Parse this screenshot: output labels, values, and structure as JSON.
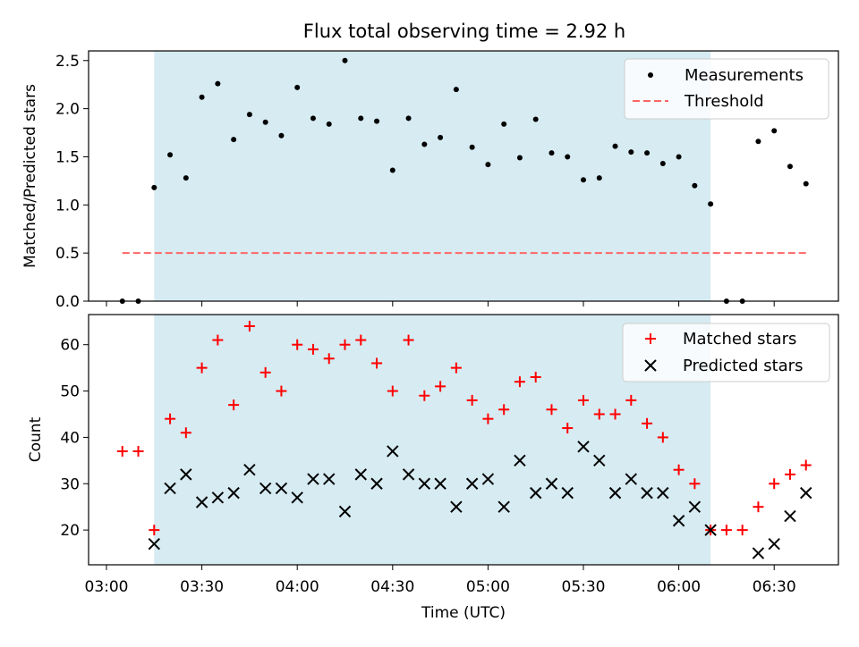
{
  "title": "Flux total observing time = 2.92 h",
  "shade_color": "#add8e6",
  "chart_data": [
    {
      "type": "scatter",
      "ylabel": "Matched/Predicted stars",
      "ylim": [
        0,
        2.6
      ],
      "yticks": [
        "0.0",
        "0.5",
        "1.0",
        "1.5",
        "2.0",
        "2.5"
      ],
      "grid": false,
      "legend": "top-right",
      "shaded_interval": [
        "03:15",
        "06:10"
      ],
      "series": [
        {
          "name": "Measurements",
          "marker": "dot",
          "color": "#000000",
          "points": [
            [
              "03:05",
              0.0
            ],
            [
              "03:10",
              0.0
            ],
            [
              "03:15",
              1.18
            ],
            [
              "03:20",
              1.52
            ],
            [
              "03:25",
              1.28
            ],
            [
              "03:30",
              2.12
            ],
            [
              "03:35",
              2.26
            ],
            [
              "03:40",
              1.68
            ],
            [
              "03:45",
              1.94
            ],
            [
              "03:50",
              1.86
            ],
            [
              "03:55",
              1.72
            ],
            [
              "04:00",
              2.22
            ],
            [
              "04:05",
              1.9
            ],
            [
              "04:10",
              1.84
            ],
            [
              "04:15",
              2.5
            ],
            [
              "04:20",
              1.9
            ],
            [
              "04:25",
              1.87
            ],
            [
              "04:30",
              1.36
            ],
            [
              "04:35",
              1.9
            ],
            [
              "04:40",
              1.63
            ],
            [
              "04:45",
              1.7
            ],
            [
              "04:50",
              2.2
            ],
            [
              "04:55",
              1.6
            ],
            [
              "05:00",
              1.42
            ],
            [
              "05:05",
              1.84
            ],
            [
              "05:10",
              1.49
            ],
            [
              "05:15",
              1.89
            ],
            [
              "05:20",
              1.54
            ],
            [
              "05:25",
              1.5
            ],
            [
              "05:30",
              1.26
            ],
            [
              "05:35",
              1.28
            ],
            [
              "05:40",
              1.61
            ],
            [
              "05:45",
              1.55
            ],
            [
              "05:50",
              1.54
            ],
            [
              "05:55",
              1.43
            ],
            [
              "06:00",
              1.5
            ],
            [
              "06:05",
              1.2
            ],
            [
              "06:10",
              1.01
            ],
            [
              "06:15",
              0.0
            ],
            [
              "06:20",
              0.0
            ],
            [
              "06:25",
              1.66
            ],
            [
              "06:30",
              1.77
            ],
            [
              "06:35",
              1.4
            ],
            [
              "06:40",
              1.22
            ]
          ]
        },
        {
          "name": "Threshold",
          "marker": "dashed-line",
          "color": "#ff6666",
          "points": [
            [
              "03:05",
              0.5
            ],
            [
              "06:40",
              0.5
            ]
          ]
        }
      ]
    },
    {
      "type": "scatter",
      "xlabel": "Time (UTC)",
      "ylabel": "Count",
      "ylim": [
        12.5,
        66.5
      ],
      "yticks": [
        "20",
        "30",
        "40",
        "50",
        "60"
      ],
      "xticks": [
        "03:00",
        "03:30",
        "04:00",
        "04:30",
        "05:00",
        "05:30",
        "06:00",
        "06:30"
      ],
      "grid": false,
      "legend": "top-right",
      "shaded_interval": [
        "03:15",
        "06:10"
      ],
      "series": [
        {
          "name": "Matched stars",
          "marker": "plus",
          "color": "#ff0000",
          "points": [
            [
              "03:05",
              37
            ],
            [
              "03:10",
              37
            ],
            [
              "03:15",
              20
            ],
            [
              "03:20",
              44
            ],
            [
              "03:25",
              41
            ],
            [
              "03:30",
              55
            ],
            [
              "03:35",
              61
            ],
            [
              "03:40",
              47
            ],
            [
              "03:45",
              64
            ],
            [
              "03:50",
              54
            ],
            [
              "03:55",
              50
            ],
            [
              "04:00",
              60
            ],
            [
              "04:05",
              59
            ],
            [
              "04:10",
              57
            ],
            [
              "04:15",
              60
            ],
            [
              "04:20",
              61
            ],
            [
              "04:25",
              56
            ],
            [
              "04:30",
              50
            ],
            [
              "04:35",
              61
            ],
            [
              "04:40",
              49
            ],
            [
              "04:45",
              51
            ],
            [
              "04:50",
              55
            ],
            [
              "04:55",
              48
            ],
            [
              "05:00",
              44
            ],
            [
              "05:05",
              46
            ],
            [
              "05:10",
              52
            ],
            [
              "05:15",
              53
            ],
            [
              "05:20",
              46
            ],
            [
              "05:25",
              42
            ],
            [
              "05:30",
              48
            ],
            [
              "05:35",
              45
            ],
            [
              "05:40",
              45
            ],
            [
              "05:45",
              48
            ],
            [
              "05:50",
              43
            ],
            [
              "05:55",
              40
            ],
            [
              "06:00",
              33
            ],
            [
              "06:05",
              30
            ],
            [
              "06:10",
              20
            ],
            [
              "06:15",
              20
            ],
            [
              "06:20",
              20
            ],
            [
              "06:25",
              25
            ],
            [
              "06:30",
              30
            ],
            [
              "06:35",
              32
            ],
            [
              "06:40",
              34
            ]
          ]
        },
        {
          "name": "Predicted stars",
          "marker": "x",
          "color": "#000000",
          "points": [
            [
              "03:15",
              17
            ],
            [
              "03:20",
              29
            ],
            [
              "03:25",
              32
            ],
            [
              "03:30",
              26
            ],
            [
              "03:35",
              27
            ],
            [
              "03:40",
              28
            ],
            [
              "03:45",
              33
            ],
            [
              "03:50",
              29
            ],
            [
              "03:55",
              29
            ],
            [
              "04:00",
              27
            ],
            [
              "04:05",
              31
            ],
            [
              "04:10",
              31
            ],
            [
              "04:15",
              24
            ],
            [
              "04:20",
              32
            ],
            [
              "04:25",
              30
            ],
            [
              "04:30",
              37
            ],
            [
              "04:35",
              32
            ],
            [
              "04:40",
              30
            ],
            [
              "04:45",
              30
            ],
            [
              "04:50",
              25
            ],
            [
              "04:55",
              30
            ],
            [
              "05:00",
              31
            ],
            [
              "05:05",
              25
            ],
            [
              "05:10",
              35
            ],
            [
              "05:15",
              28
            ],
            [
              "05:20",
              30
            ],
            [
              "05:25",
              28
            ],
            [
              "05:30",
              38
            ],
            [
              "05:35",
              35
            ],
            [
              "05:40",
              28
            ],
            [
              "05:45",
              31
            ],
            [
              "05:50",
              28
            ],
            [
              "05:55",
              28
            ],
            [
              "06:00",
              22
            ],
            [
              "06:05",
              25
            ],
            [
              "06:10",
              20
            ],
            [
              "06:25",
              15
            ],
            [
              "06:30",
              17
            ],
            [
              "06:35",
              23
            ],
            [
              "06:40",
              28
            ]
          ]
        }
      ]
    }
  ]
}
